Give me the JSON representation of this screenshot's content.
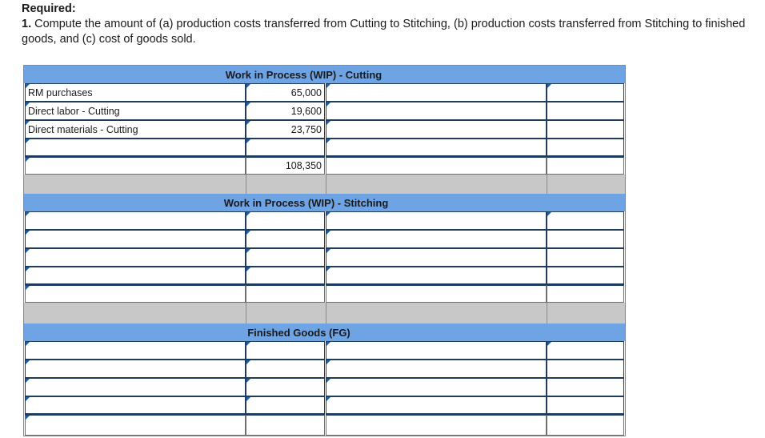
{
  "heading": {
    "required": "Required:",
    "item_number": "1.",
    "item_text": " Compute the amount of (a) production costs transferred from Cutting to Stitching, (b) production costs transferred from Stitching to finished goods, and (c) cost of goods sold."
  },
  "accounts": {
    "cutting": {
      "title": "Work in Process (WIP) - Cutting",
      "rows": [
        {
          "label": "RM purchases",
          "debit": "65,000"
        },
        {
          "label": "Direct labor - Cutting",
          "debit": "19,600"
        },
        {
          "label": "Direct materials - Cutting",
          "debit": "23,750"
        }
      ],
      "total": "108,350"
    },
    "stitching": {
      "title": "Work in Process (WIP) - Stitching"
    },
    "finished": {
      "title": "Finished Goods (FG)"
    }
  },
  "colors": {
    "title_bar": "#6fa4e4",
    "separator": "#c8c8c8",
    "flag": "#1f5fa8"
  }
}
